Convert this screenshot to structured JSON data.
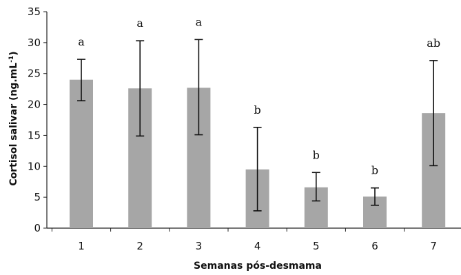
{
  "chart_data": {
    "type": "bar",
    "categories": [
      "1",
      "2",
      "3",
      "4",
      "5",
      "6",
      "7"
    ],
    "values": [
      24.0,
      22.6,
      22.7,
      9.5,
      6.6,
      5.1,
      18.6
    ],
    "error_upper": [
      27.3,
      30.3,
      30.5,
      16.3,
      9.0,
      6.5,
      27.1
    ],
    "error_lower": [
      20.6,
      14.9,
      15.1,
      2.8,
      4.4,
      3.7,
      10.1
    ],
    "significance_letters": [
      "a",
      "a",
      "a",
      "b",
      "b",
      "b",
      "ab"
    ],
    "ylabel_main": "Cortisol salivar (ng.mL",
    "ylabel_sup": "-1",
    "ylabel_end": ")",
    "xlabel": "Semanas pós-desmama",
    "ylim": [
      0,
      35
    ],
    "yticks": [
      0,
      5,
      10,
      15,
      20,
      25,
      30,
      35
    ],
    "grid": false,
    "bar_color": "#a6a6a6"
  }
}
